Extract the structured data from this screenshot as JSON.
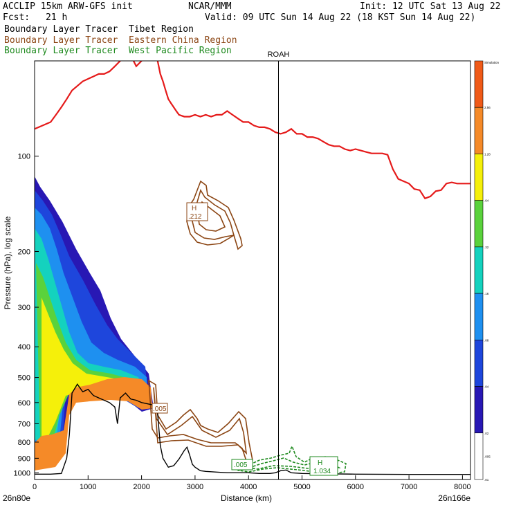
{
  "header": {
    "model": "ACCLIP 15km ARW-GFS init",
    "org": "NCAR/MMM",
    "init": "Init: 12 UTC Sat 13 Aug 22",
    "fcst_label": "Fcst:",
    "fcst_value": "21 h",
    "valid": "Valid: 09 UTC Sun 14 Aug 22 (18 KST Sun 14 Aug 22)"
  },
  "legend": [
    {
      "text": "Boundary Layer Tracer  Tibet Region",
      "color": "#000000"
    },
    {
      "text": "Boundary Layer Tracer  Eastern China Region",
      "color": "#8b4513"
    },
    {
      "text": "Boundary Layer Tracer  West Pacific Region",
      "color": "#1e8a1e"
    }
  ],
  "chart_data": {
    "type": "cross-section",
    "xlabel": "Distance (km)",
    "ylabel": "Pressure (hPa), log scale",
    "x_ticks": [
      0,
      1000,
      2000,
      3000,
      4000,
      5000,
      6000,
      7000,
      8000
    ],
    "y_ticks": [
      100,
      200,
      300,
      400,
      500,
      600,
      700,
      800,
      900,
      1000
    ],
    "xlim": [
      0,
      8150
    ],
    "ylim": [
      1050,
      50
    ],
    "endpoint_left": "26n80e",
    "endpoint_right": "26n166e",
    "station": {
      "name": "ROAH",
      "x": 4560
    },
    "tropopause": {
      "color": "#e51a1a",
      "points": [
        [
          0,
          82
        ],
        [
          150,
          80
        ],
        [
          300,
          78
        ],
        [
          400,
          74
        ],
        [
          500,
          70
        ],
        [
          600,
          66
        ],
        [
          700,
          62
        ],
        [
          800,
          60
        ],
        [
          900,
          58
        ],
        [
          1000,
          57
        ],
        [
          1100,
          56
        ],
        [
          1200,
          55
        ],
        [
          1300,
          55
        ],
        [
          1400,
          54
        ],
        [
          1500,
          52
        ],
        [
          1600,
          50
        ],
        [
          1700,
          48
        ],
        [
          1800,
          48
        ],
        [
          1850,
          50
        ],
        [
          1900,
          52
        ],
        [
          2000,
          50
        ],
        [
          2100,
          48
        ],
        [
          2150,
          46
        ],
        [
          2200,
          43
        ],
        [
          2250,
          47
        ],
        [
          2300,
          50
        ],
        [
          2350,
          55
        ],
        [
          2400,
          58
        ],
        [
          2450,
          62
        ],
        [
          2500,
          66
        ],
        [
          2550,
          68
        ],
        [
          2600,
          70
        ],
        [
          2650,
          72
        ],
        [
          2700,
          74
        ],
        [
          2800,
          75
        ],
        [
          2900,
          75
        ],
        [
          3000,
          74
        ],
        [
          3100,
          75
        ],
        [
          3200,
          74
        ],
        [
          3300,
          75
        ],
        [
          3400,
          74
        ],
        [
          3500,
          74
        ],
        [
          3600,
          72
        ],
        [
          3700,
          74
        ],
        [
          3800,
          76
        ],
        [
          3900,
          78
        ],
        [
          4000,
          78
        ],
        [
          4100,
          80
        ],
        [
          4200,
          81
        ],
        [
          4300,
          81
        ],
        [
          4400,
          82
        ],
        [
          4500,
          84
        ],
        [
          4600,
          85
        ],
        [
          4700,
          84
        ],
        [
          4800,
          82
        ],
        [
          4900,
          85
        ],
        [
          5000,
          85
        ],
        [
          5100,
          87
        ],
        [
          5200,
          87
        ],
        [
          5300,
          88
        ],
        [
          5400,
          90
        ],
        [
          5500,
          92
        ],
        [
          5600,
          93
        ],
        [
          5700,
          93
        ],
        [
          5800,
          95
        ],
        [
          5900,
          96
        ],
        [
          6000,
          95
        ],
        [
          6100,
          96
        ],
        [
          6200,
          97
        ],
        [
          6300,
          98
        ],
        [
          6400,
          98
        ],
        [
          6500,
          98
        ],
        [
          6600,
          99
        ],
        [
          6700,
          110
        ],
        [
          6800,
          118
        ],
        [
          6900,
          120
        ],
        [
          7000,
          122
        ],
        [
          7100,
          127
        ],
        [
          7200,
          128
        ],
        [
          7300,
          136
        ],
        [
          7400,
          134
        ],
        [
          7500,
          129
        ],
        [
          7600,
          128
        ],
        [
          7700,
          122
        ],
        [
          7800,
          121
        ],
        [
          7900,
          122
        ],
        [
          8000,
          122
        ],
        [
          8150,
          122
        ]
      ]
    },
    "terrain": {
      "color": "#000000",
      "points": [
        [
          0,
          1010
        ],
        [
          200,
          1010
        ],
        [
          300,
          1010
        ],
        [
          500,
          1005
        ],
        [
          600,
          900
        ],
        [
          650,
          760
        ],
        [
          700,
          560
        ],
        [
          800,
          525
        ],
        [
          900,
          555
        ],
        [
          1000,
          545
        ],
        [
          1100,
          570
        ],
        [
          1200,
          580
        ],
        [
          1300,
          590
        ],
        [
          1400,
          600
        ],
        [
          1500,
          620
        ],
        [
          1550,
          700
        ],
        [
          1600,
          580
        ],
        [
          1700,
          560
        ],
        [
          1800,
          585
        ],
        [
          1900,
          590
        ],
        [
          2000,
          600
        ],
        [
          2100,
          605
        ],
        [
          2200,
          610
        ],
        [
          2250,
          620
        ],
        [
          2300,
          650
        ],
        [
          2350,
          820
        ],
        [
          2400,
          900
        ],
        [
          2500,
          960
        ],
        [
          2600,
          950
        ],
        [
          2700,
          905
        ],
        [
          2800,
          850
        ],
        [
          2850,
          830
        ],
        [
          2900,
          880
        ],
        [
          2950,
          940
        ],
        [
          3000,
          960
        ],
        [
          3100,
          985
        ],
        [
          3200,
          990
        ],
        [
          3400,
          995
        ],
        [
          3600,
          1000
        ],
        [
          3800,
          1000
        ],
        [
          4000,
          1000
        ],
        [
          4200,
          1005
        ],
        [
          4400,
          1005
        ],
        [
          4500,
          1000
        ],
        [
          4600,
          985
        ],
        [
          4700,
          980
        ],
        [
          4800,
          1000
        ],
        [
          5000,
          1005
        ],
        [
          6000,
          1010
        ],
        [
          7000,
          1012
        ],
        [
          8150,
          1012
        ]
      ]
    },
    "tibet_tracer_shading": {
      "type": "filled-contour",
      "colorbar_levels": [
        "Simulation",
        "2.56",
        "1.28",
        ".64",
        ".32",
        ".16",
        ".08",
        ".04",
        ".02",
        ".01",
        ".005"
      ],
      "colorbar_colors": [
        "#f05a18",
        "#f58a28",
        "#f5f00a",
        "#5ad23c",
        "#14d2be",
        "#1e90f0",
        "#1e46dc",
        "#2818b4",
        "#ffffff"
      ]
    },
    "eastern_china_contours": {
      "color": "#8b4513",
      "labels": [
        {
          "text": "H",
          "value": ".212",
          "x": 2950,
          "p": 155
        },
        {
          "text": "",
          "value": ".005",
          "x": 2300,
          "p": 610
        }
      ]
    },
    "west_pacific_contours": {
      "color": "#1e8a1e",
      "labels": [
        {
          "text": "",
          "value": ".005",
          "x": 3900,
          "p": 950
        },
        {
          "text": "H",
          "value": "1.034",
          "x": 5300,
          "p": 940
        }
      ]
    }
  }
}
